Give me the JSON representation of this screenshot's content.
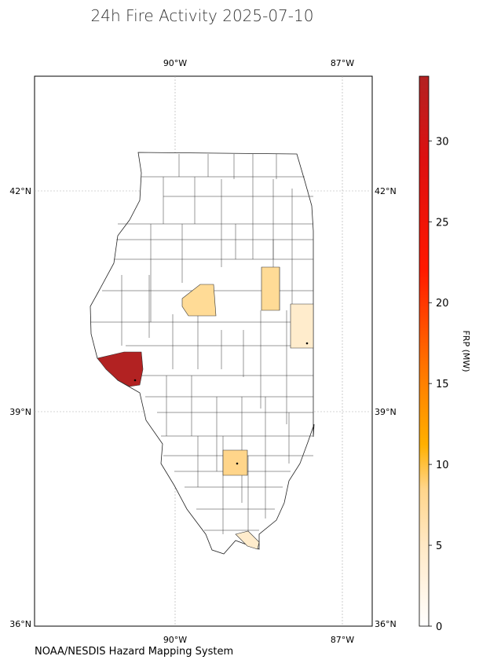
{
  "title": "24h Fire Activity 2025-07-10",
  "source": "NOAA/NESDIS Hazard Mapping System",
  "lon_ticks": [
    "90°W",
    "87°W"
  ],
  "lat_ticks": [
    "42°N",
    "39°N",
    "36°N"
  ],
  "colorbar": {
    "label": "FRP (MW)",
    "min": 0,
    "max": 34,
    "ticks": [
      "0",
      "5",
      "10",
      "15",
      "20",
      "25",
      "30"
    ],
    "tick_values": [
      0,
      5,
      10,
      15,
      20,
      25,
      30
    ],
    "colors": [
      "#ffffff",
      "#ffe8c4",
      "#ffd58a",
      "#ffb000",
      "#ff7000",
      "#ff1800",
      "#dd1010",
      "#b22222"
    ]
  },
  "chart_data": {
    "type": "choropleth",
    "region": "Illinois counties",
    "metric": "FRP (MW)",
    "extent": {
      "lon": [
        -92.5,
        -86.5
      ],
      "lat": [
        36,
        43.5
      ]
    },
    "fire_counties": [
      {
        "area": "west-central (Mississippi River)",
        "frp": 34
      },
      {
        "area": "central",
        "frp": 7
      },
      {
        "area": "east-central",
        "frp": 7
      },
      {
        "area": "eastern border",
        "frp": 3
      },
      {
        "area": "southern",
        "frp": 7
      },
      {
        "area": "southern tip",
        "frp": 4
      }
    ]
  }
}
